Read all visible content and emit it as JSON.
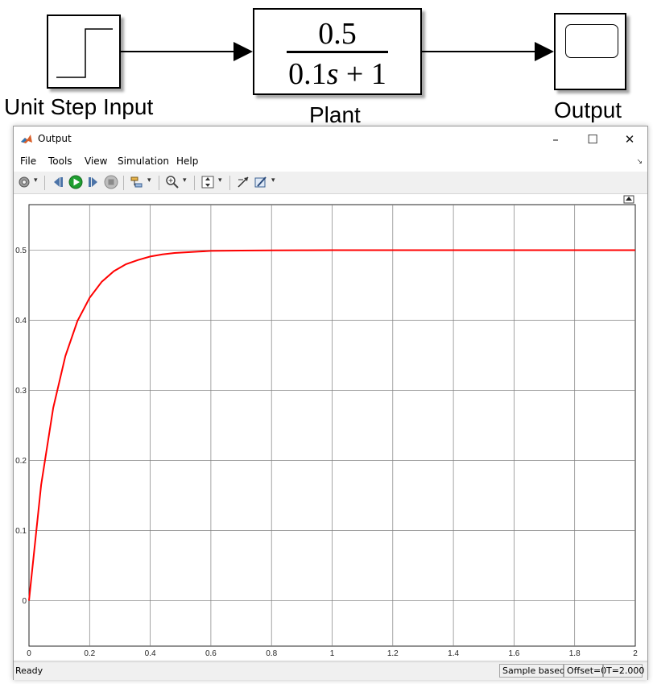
{
  "diagram": {
    "step_block_label": "Unit Step Input",
    "plant_numerator": "0.5",
    "plant_denominator_prefix": "0.1",
    "plant_denominator_var": "s",
    "plant_denominator_suffix": " + 1",
    "plant_block_label": "Plant",
    "scope_block_label": "Output"
  },
  "window": {
    "title": "Output",
    "menu": [
      "File",
      "Tools",
      "View",
      "Simulation",
      "Help"
    ],
    "toolbar_icons": [
      "gear-icon",
      "step-back-icon",
      "run-icon",
      "step-forward-icon",
      "stop-icon",
      "highlight-icon",
      "zoom-icon",
      "scale-axes-icon",
      "cursor-measure-icon",
      "style-icon"
    ],
    "status": {
      "left": "Ready",
      "sample": "Sample based",
      "offset": "Offset=0",
      "time": "T=2.000"
    }
  },
  "colors": {
    "trace": "#ff0000",
    "grid": "#7f7f7f"
  },
  "chart_data": {
    "type": "line",
    "title": "",
    "xlabel": "",
    "ylabel": "",
    "xlim": [
      0,
      2
    ],
    "ylim": [
      -0.065,
      0.565
    ],
    "grid": true,
    "xticks": [
      0,
      0.2,
      0.4,
      0.6,
      0.8,
      1,
      1.2,
      1.4,
      1.6,
      1.8,
      2
    ],
    "yticks": [
      0,
      0.1,
      0.2,
      0.3,
      0.4,
      0.5
    ],
    "series": [
      {
        "x": [
          0,
          0.04,
          0.08,
          0.12,
          0.16,
          0.2,
          0.24,
          0.28,
          0.32,
          0.36,
          0.4,
          0.44,
          0.48,
          0.52,
          0.56,
          0.6,
          0.7,
          0.8,
          0.9,
          1.0,
          1.2,
          1.4,
          1.6,
          1.8,
          2.0
        ],
        "values": [
          0,
          0.165,
          0.275,
          0.349,
          0.399,
          0.432,
          0.455,
          0.47,
          0.48,
          0.486,
          0.491,
          0.494,
          0.496,
          0.497,
          0.498,
          0.499,
          0.4995,
          0.4998,
          0.4999,
          0.5,
          0.5,
          0.5,
          0.5,
          0.5,
          0.5
        ]
      }
    ]
  }
}
